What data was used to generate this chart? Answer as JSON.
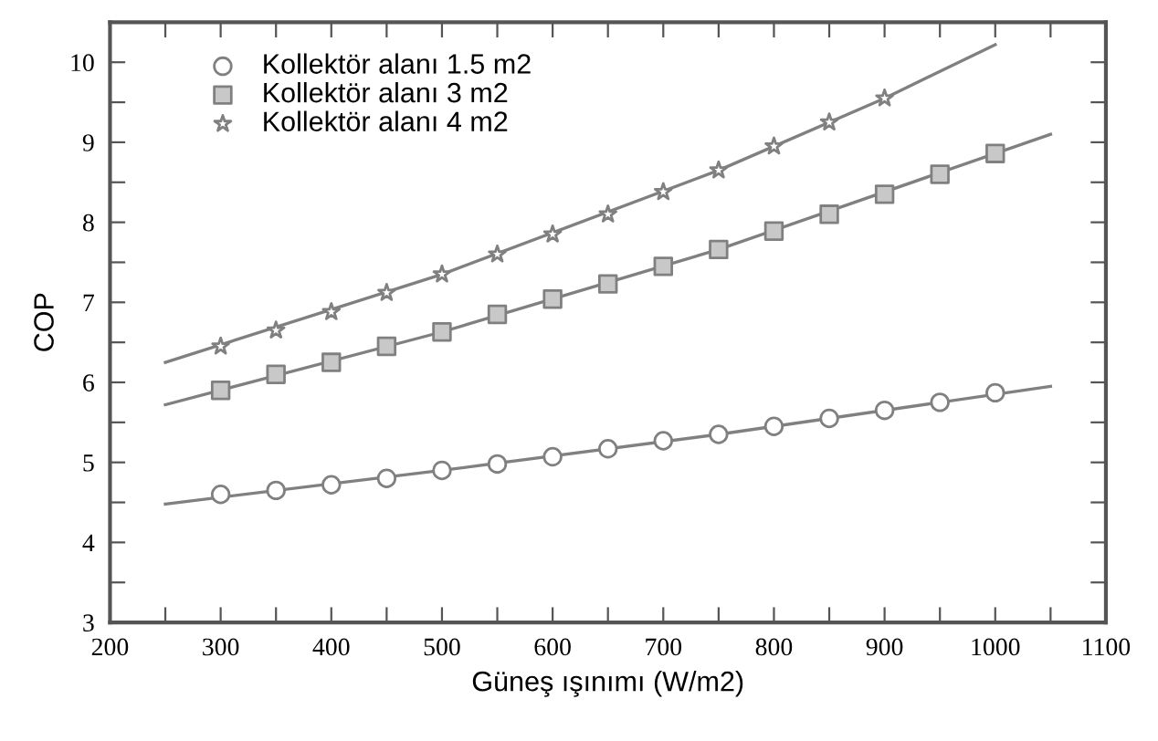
{
  "chart_data": {
    "type": "scatter",
    "xlabel": "Güneş ışınımı (W/m2)",
    "ylabel": "COP",
    "xlim": [
      200,
      1100
    ],
    "ylim": [
      3,
      10.5
    ],
    "xticks": [
      200,
      {
        "value": 250,
        "label": null
      },
      300,
      {
        "value": 350,
        "label": null
      },
      400,
      {
        "value": 450,
        "label": null
      },
      500,
      {
        "value": 550,
        "label": null
      },
      600,
      {
        "value": 650,
        "label": null
      },
      700,
      {
        "value": 750,
        "label": null
      },
      800,
      {
        "value": 850,
        "label": null
      },
      900,
      {
        "value": 950,
        "label": null
      },
      1000,
      {
        "value": 1050,
        "label": null
      },
      1100
    ],
    "yticks": [
      3,
      {
        "value": 3.5,
        "label": null
      },
      4,
      {
        "value": 4.5,
        "label": null
      },
      5,
      {
        "value": 5.5,
        "label": null
      },
      6,
      {
        "value": 6.5,
        "label": null
      },
      7,
      {
        "value": 7.5,
        "label": null
      },
      8,
      {
        "value": 8.5,
        "label": null
      },
      9,
      {
        "value": 9.5,
        "label": null
      },
      10
    ],
    "grid": false,
    "legend": "top left",
    "series": [
      {
        "name": "Kollektör alanı 1.5 m2",
        "marker": "circle",
        "color": "#808080",
        "x": [
          300,
          350,
          400,
          450,
          500,
          550,
          600,
          650,
          700,
          750,
          800,
          850,
          900,
          950,
          1000
        ],
        "values": [
          4.6,
          4.65,
          4.72,
          4.8,
          4.9,
          4.98,
          5.07,
          5.17,
          5.27,
          5.35,
          5.45,
          5.55,
          5.65,
          5.75,
          5.87
        ]
      },
      {
        "name": "Kollektör alanı 3 m2",
        "marker": "square",
        "color": "#808080",
        "x": [
          300,
          350,
          400,
          450,
          500,
          550,
          600,
          650,
          700,
          750,
          800,
          850,
          900,
          950,
          1000
        ],
        "values": [
          5.9,
          6.1,
          6.25,
          6.45,
          6.63,
          6.85,
          7.04,
          7.23,
          7.45,
          7.66,
          7.89,
          8.1,
          8.35,
          8.6,
          8.86
        ]
      },
      {
        "name": "Kollektör alanı 4 m2",
        "marker": "star",
        "color": "#808080",
        "x": [
          300,
          350,
          400,
          450,
          500,
          550,
          600,
          650,
          700,
          750,
          800,
          850,
          900
        ],
        "values": [
          6.45,
          6.65,
          6.88,
          7.12,
          7.35,
          7.6,
          7.85,
          8.1,
          8.38,
          8.65,
          8.95,
          9.25,
          9.55
        ]
      },
      {
        "type": "line",
        "color": "#808080",
        "x": [
          250,
          500,
          750,
          1050
        ],
        "values": [
          4.48,
          4.9,
          5.35,
          5.95
        ]
      },
      {
        "type": "line",
        "color": "#808080",
        "x": [
          250,
          500,
          750,
          1050
        ],
        "values": [
          5.72,
          6.63,
          7.66,
          9.1
        ]
      },
      {
        "type": "line",
        "color": "#808080",
        "x": [
          250,
          500,
          750,
          900,
          1000
        ],
        "values": [
          6.25,
          7.35,
          8.65,
          9.55,
          10.22
        ]
      }
    ]
  }
}
